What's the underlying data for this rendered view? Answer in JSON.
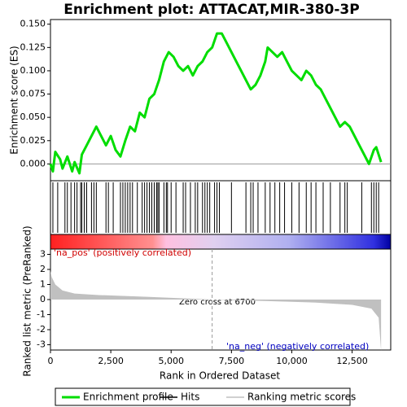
{
  "chart_data": {
    "type": "line",
    "title": "Enrichment plot: ATTACAT,MIR-380-3P",
    "xlabel": "Rank in Ordered Dataset",
    "xlim": [
      0,
      14100
    ],
    "xticks": [
      0,
      {
        "value": 2500,
        "label": "2,500"
      },
      {
        "value": 5000,
        "label": "5,000"
      },
      {
        "value": 7500,
        "label": "7,500"
      },
      {
        "value": 10000,
        "label": "10,000"
      },
      {
        "value": 12500,
        "label": "12,500"
      }
    ],
    "es": {
      "ylabel": "Enrichment score (ES)",
      "color": "#00dd00",
      "ylim": [
        -0.018,
        0.155
      ],
      "yticks": [
        {
          "value": 0,
          "label": "0.000"
        },
        {
          "value": 0.025,
          "label": "0.025"
        },
        {
          "value": 0.05,
          "label": "0.050"
        },
        {
          "value": 0.075,
          "label": "0.075"
        },
        {
          "value": 0.1,
          "label": "0.100"
        },
        {
          "value": 0.125,
          "label": "0.125"
        },
        {
          "value": 0.15,
          "label": "0.150"
        }
      ],
      "x": [
        0,
        100,
        200,
        400,
        500,
        700,
        900,
        1000,
        1200,
        1300,
        1500,
        1700,
        1900,
        2100,
        2300,
        2500,
        2700,
        2900,
        3100,
        3300,
        3500,
        3700,
        3900,
        4100,
        4300,
        4500,
        4700,
        4900,
        5100,
        5300,
        5500,
        5700,
        5900,
        6100,
        6300,
        6500,
        6700,
        6900,
        7100,
        7300,
        7500,
        7700,
        7900,
        8100,
        8300,
        8500,
        8700,
        8900,
        9000,
        9200,
        9400,
        9600,
        9800,
        10000,
        10200,
        10400,
        10600,
        10800,
        11000,
        11200,
        11400,
        11600,
        11800,
        12000,
        12200,
        12400,
        12600,
        12800,
        13000,
        13200,
        13400,
        13500,
        13700
      ],
      "values": [
        0,
        -0.008,
        0.013,
        0.005,
        -0.005,
        0.008,
        -0.008,
        0.002,
        -0.01,
        0.01,
        0.02,
        0.03,
        0.04,
        0.03,
        0.02,
        0.03,
        0.015,
        0.008,
        0.025,
        0.04,
        0.035,
        0.055,
        0.05,
        0.07,
        0.075,
        0.09,
        0.11,
        0.12,
        0.115,
        0.105,
        0.1,
        0.105,
        0.095,
        0.105,
        0.11,
        0.12,
        0.125,
        0.14,
        0.14,
        0.13,
        0.12,
        0.11,
        0.1,
        0.09,
        0.08,
        0.085,
        0.095,
        0.11,
        0.125,
        0.12,
        0.115,
        0.12,
        0.11,
        0.1,
        0.095,
        0.09,
        0.1,
        0.095,
        0.085,
        0.08,
        0.07,
        0.06,
        0.05,
        0.04,
        0.045,
        0.04,
        0.03,
        0.02,
        0.01,
        0.0,
        0.015,
        0.018,
        0.002
      ]
    },
    "hits": [
      100,
      300,
      600,
      700,
      850,
      1000,
      1100,
      1250,
      1300,
      1400,
      1500,
      1700,
      1800,
      1900,
      2300,
      2400,
      2600,
      2900,
      3000,
      3100,
      3200,
      3300,
      3400,
      3600,
      3800,
      3900,
      4000,
      4100,
      4200,
      4300,
      4400,
      4450,
      4500,
      4700,
      4800,
      4850,
      5000,
      5200,
      5500,
      5600,
      5800,
      6000,
      6100,
      6300,
      6400,
      6500,
      6600,
      6800,
      6900,
      7000,
      7500,
      8100,
      8300,
      8400,
      8600,
      8900,
      9100,
      9300,
      9500,
      9700,
      10000,
      10300,
      10600,
      10800,
      11000,
      11300,
      11600,
      12000,
      12200,
      12300,
      12900,
      13300,
      13400,
      13500,
      13600
    ],
    "metric": {
      "ylabel": "Ranked list metric (PreRanked)",
      "color": "#c0c0c0",
      "ylim": [
        -3.35,
        3.35
      ],
      "yticks": [
        -3,
        -2,
        -1,
        0,
        1,
        2,
        3
      ],
      "x": [
        0,
        50,
        200,
        500,
        1000,
        2000,
        4000,
        6700,
        9000,
        11000,
        12500,
        13300,
        13600,
        13700
      ],
      "values": [
        1.9,
        1.5,
        1.0,
        0.6,
        0.4,
        0.3,
        0.18,
        0,
        -0.1,
        -0.2,
        -0.35,
        -0.6,
        -1.2,
        -3.4
      ]
    },
    "zero_cross": 6700,
    "annotations": [
      "'na_pos' (positively correlated)",
      "Zero cross at 6700",
      "'na_neg' (negatively correlated)"
    ],
    "legend": [
      "Enrichment profile",
      "Hits",
      "Ranking metric scores"
    ]
  }
}
